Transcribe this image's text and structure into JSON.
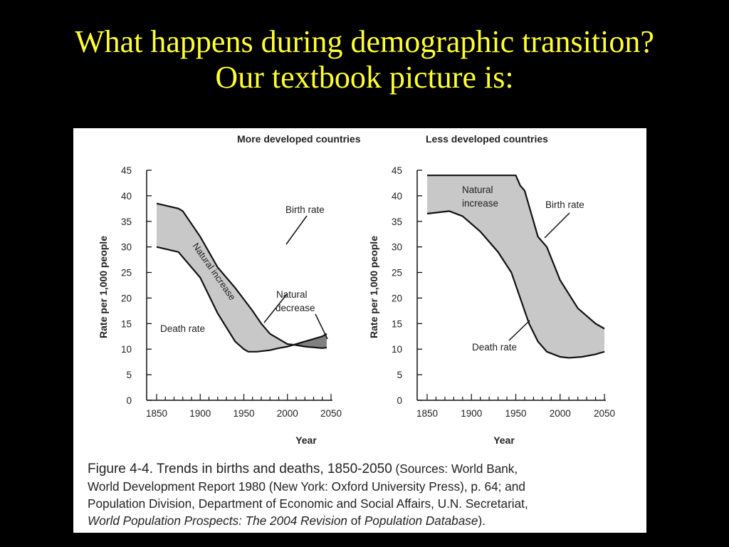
{
  "slide": {
    "title_line1": "What happens during demographic transition?",
    "title_line2": "Our textbook picture is:",
    "title_color": "#ffff33",
    "background": "#000000"
  },
  "chart_data": [
    {
      "type": "area",
      "title": "More developed countries",
      "xlabel": "Year",
      "ylabel": "Rate per 1,000 people",
      "xlim": [
        1850,
        2050
      ],
      "ylim": [
        0,
        45
      ],
      "x_ticks": [
        1850,
        1900,
        1950,
        2000,
        2050
      ],
      "y_ticks": [
        0,
        5,
        10,
        15,
        20,
        25,
        30,
        35,
        40,
        45
      ],
      "grid": false,
      "fill_color": "#c8c8c8",
      "decrease_fill_color": "#808080",
      "series": [
        {
          "name": "Birth rate",
          "x": [
            1850,
            1875,
            1880,
            1900,
            1920,
            1940,
            1960,
            1970,
            1980,
            2000,
            2010,
            2020,
            2040,
            2045
          ],
          "y": [
            38.5,
            37.5,
            37,
            32,
            26,
            22,
            17.5,
            15,
            13,
            11,
            10.8,
            10.5,
            10.2,
            10.3
          ]
        },
        {
          "name": "Death rate",
          "x": [
            1850,
            1875,
            1900,
            1920,
            1940,
            1950,
            1955,
            1965,
            1980,
            1990,
            2000,
            2010,
            2020,
            2040,
            2045
          ],
          "y": [
            30,
            29,
            24,
            17,
            11.5,
            10,
            9.5,
            9.5,
            9.8,
            10.2,
            10.5,
            11,
            11.5,
            12.5,
            13
          ]
        }
      ],
      "annotations": [
        "Birth rate",
        "Death rate",
        "Natural increase",
        "Natural",
        "decrease"
      ]
    },
    {
      "type": "area",
      "title": "Less developed countries",
      "xlabel": "Year",
      "ylabel": "Rate per 1,000 people",
      "xlim": [
        1850,
        2050
      ],
      "ylim": [
        0,
        45
      ],
      "x_ticks": [
        1850,
        1900,
        1950,
        2000,
        2050
      ],
      "y_ticks": [
        0,
        5,
        10,
        15,
        20,
        25,
        30,
        35,
        40,
        45
      ],
      "grid": false,
      "fill_color": "#c8c8c8",
      "series": [
        {
          "name": "Birth rate",
          "x": [
            1850,
            1950,
            1955,
            1960,
            1965,
            1975,
            1985,
            2000,
            2020,
            2040,
            2050
          ],
          "y": [
            44,
            44,
            42,
            41,
            38,
            32,
            30,
            23.5,
            18,
            15,
            14
          ]
        },
        {
          "name": "Death rate",
          "x": [
            1850,
            1875,
            1890,
            1910,
            1930,
            1945,
            1955,
            1965,
            1975,
            1985,
            2000,
            2010,
            2025,
            2040,
            2050
          ],
          "y": [
            36.5,
            37,
            36,
            33,
            29,
            25,
            20,
            15,
            11.5,
            9.5,
            8.5,
            8.3,
            8.5,
            9,
            9.5
          ]
        }
      ],
      "annotations": [
        "Birth rate",
        "Death rate",
        "Natural",
        "increase"
      ]
    }
  ],
  "caption": {
    "lead": "Figure 4-4. Trends in births and deaths, 1850-2050",
    "l1_rest": " (Sources: World Bank,",
    "l2": "World Development Report 1980 (New York: Oxford University Press), p. 64; and",
    "l3": "Population Division, Department of Economic and Social Affairs, U.N. Secretariat,",
    "l4_italic_a": "World Population Prospects: The 2004 Revision",
    "l4_mid": " of ",
    "l4_italic_b": "Population Database",
    "l4_end": ")."
  }
}
